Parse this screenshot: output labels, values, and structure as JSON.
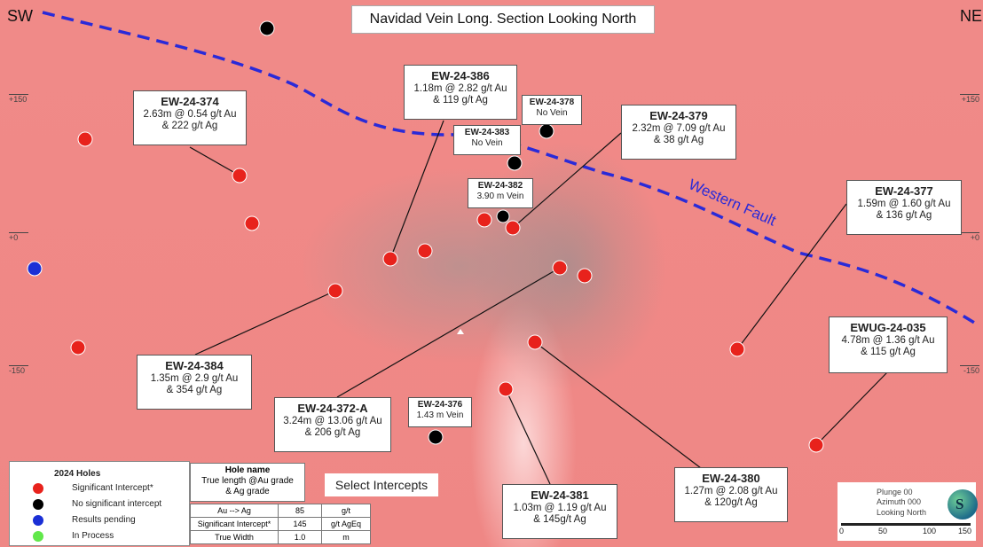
{
  "title": "Navidad Vein Long. Section Looking North",
  "corner_left": "SW",
  "corner_right": "NE",
  "ticks": [
    "+150",
    "+0",
    "-150",
    "+150",
    "+0",
    "-150"
  ],
  "fault_label": "Western Fault",
  "colors": {
    "background": "#ef8785",
    "significant": "#e8221c",
    "no_significant": "#000000",
    "pending": "#1a2fd6",
    "in_process": "#61e84a",
    "fault": "#2a2ad8"
  },
  "labels": [
    {
      "id": "EW-24-374",
      "lines": [
        "2.63m @ 0.54 g/t Au",
        "& 222 g/t Ag"
      ]
    },
    {
      "id": "EW-24-386",
      "lines": [
        "1.18m @ 2.82 g/t Au",
        "& 119 g/t Ag"
      ]
    },
    {
      "id": "EW-24-378",
      "lines": [
        "No Vein"
      ]
    },
    {
      "id": "EW-24-383",
      "lines": [
        "No Vein"
      ]
    },
    {
      "id": "EW-24-379",
      "lines": [
        "2.32m @ 7.09 g/t Au",
        "& 38 g/t Ag"
      ]
    },
    {
      "id": "EW-24-382",
      "lines": [
        "3.90 m Vein"
      ]
    },
    {
      "id": "EW-24-377",
      "lines": [
        "1.59m @ 1.60 g/t Au",
        "& 136 g/t Ag"
      ]
    },
    {
      "id": "EWUG-24-035",
      "lines": [
        "4.78m @ 1.36 g/t Au",
        "& 115 g/t Ag"
      ]
    },
    {
      "id": "EW-24-384",
      "lines": [
        "1.35m @ 2.9 g/t Au",
        "& 354 g/t Ag"
      ]
    },
    {
      "id": "EW-24-372-A",
      "lines": [
        "3.24m @ 13.06 g/t Au",
        "& 206 g/t Ag"
      ]
    },
    {
      "id": "EW-24-376",
      "lines": [
        "1.43 m Vein"
      ]
    },
    {
      "id": "EW-24-381",
      "lines": [
        "1.03m @ 1.19 g/t Au",
        "& 145g/t Ag"
      ]
    },
    {
      "id": "EW-24-380",
      "lines": [
        "1.27m @ 2.08 g/t Au",
        "& 120g/t Ag"
      ]
    }
  ],
  "legend": {
    "title": "2024 Holes",
    "items": [
      "Significant Intercept*",
      "No significant intercept",
      "Results pending",
      "In Process"
    ]
  },
  "hole_name_box": [
    "Hole name",
    "True length @Au grade",
    "& Ag grade"
  ],
  "select_intercepts": "Select Intercepts",
  "params": [
    [
      "Au --> Ag",
      "85",
      "g/t"
    ],
    [
      "Significant Intercept*",
      "145",
      "g/t AgEq"
    ],
    [
      "True Width",
      "1.0",
      "m"
    ]
  ],
  "view_info": [
    "Plunge 00",
    "Azimuth 000",
    "Looking North"
  ],
  "scale": [
    "0",
    "50",
    "100",
    "150"
  ]
}
